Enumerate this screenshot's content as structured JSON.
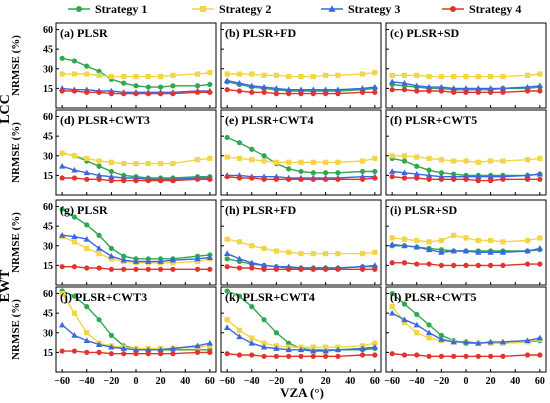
{
  "chart_data": {
    "type": "line",
    "x": [
      -60,
      -50,
      -40,
      -30,
      -20,
      -10,
      0,
      10,
      20,
      30,
      50,
      60
    ],
    "xlabel": "VZA (°)",
    "ylabel": "NRMSE (%)",
    "ylim": [
      0,
      65
    ],
    "xlim": [
      -65,
      65
    ],
    "yticks": [
      0,
      15,
      30,
      45,
      60
    ],
    "yticklabels": [
      "",
      "15",
      "30",
      "45",
      "60"
    ],
    "xticks": [
      -60,
      -40,
      -20,
      0,
      20,
      40,
      60
    ],
    "xticklabels": [
      "−60",
      "−40",
      "−20",
      "0",
      "20",
      "40",
      "60"
    ],
    "row_labels": [
      {
        "label": "LCC",
        "rows": [
          0,
          1
        ]
      },
      {
        "label": "EWT",
        "rows": [
          2,
          3
        ]
      }
    ],
    "legend": {
      "placement": "top",
      "entries": [
        {
          "name": "Strategy 1",
          "color": "#2fa84f",
          "marker": "circle"
        },
        {
          "name": "Strategy 2",
          "color": "#f2d548",
          "marker": "square"
        },
        {
          "name": "Strategy 3",
          "color": "#3b68e0",
          "marker": "triangle"
        },
        {
          "name": "Strategy 4",
          "color": "#e2332c",
          "marker": "circle"
        }
      ]
    },
    "panels": [
      {
        "title": "(a) PLSR",
        "series": [
          [
            38,
            36,
            32,
            28,
            22,
            19,
            17,
            16,
            16,
            17,
            17,
            18
          ],
          [
            26,
            26,
            26,
            25,
            24,
            24,
            24,
            24,
            24,
            25,
            26,
            27
          ],
          [
            15,
            14,
            14,
            13,
            13,
            12,
            12,
            12,
            12,
            12,
            13,
            13
          ],
          [
            13,
            13,
            12,
            12,
            11,
            11,
            11,
            11,
            11,
            11,
            12,
            12
          ]
        ]
      },
      {
        "title": "(b) PLSR+FD",
        "series": [
          [
            20,
            18,
            16,
            15,
            14,
            13,
            13,
            13,
            13,
            13,
            14,
            15
          ],
          [
            26,
            26,
            26,
            25,
            25,
            24,
            24,
            24,
            25,
            25,
            26,
            27
          ],
          [
            21,
            19,
            17,
            16,
            15,
            14,
            14,
            14,
            14,
            14,
            15,
            16
          ],
          [
            14,
            13,
            12,
            12,
            11,
            11,
            11,
            11,
            11,
            11,
            12,
            12
          ]
        ]
      },
      {
        "title": "(c) PLSR+SD",
        "series": [
          [
            18,
            17,
            16,
            15,
            15,
            14,
            14,
            14,
            14,
            15,
            15,
            16
          ],
          [
            25,
            25,
            25,
            24,
            24,
            24,
            24,
            24,
            24,
            24,
            25,
            26
          ],
          [
            20,
            19,
            17,
            16,
            16,
            15,
            15,
            15,
            15,
            15,
            16,
            17
          ],
          [
            14,
            14,
            13,
            13,
            13,
            12,
            12,
            12,
            12,
            12,
            13,
            13
          ]
        ]
      },
      {
        "title": "(d) PLSR+CWT3",
        "series": [
          [
            32,
            30,
            26,
            22,
            18,
            15,
            14,
            13,
            13,
            13,
            14,
            14
          ],
          [
            32,
            30,
            28,
            26,
            25,
            24,
            24,
            24,
            24,
            24,
            27,
            28
          ],
          [
            22,
            19,
            17,
            15,
            14,
            13,
            13,
            12,
            12,
            12,
            13,
            13
          ],
          [
            13,
            13,
            12,
            12,
            11,
            11,
            11,
            11,
            11,
            11,
            12,
            12
          ]
        ]
      },
      {
        "title": "(e) PLSR+CWT4",
        "series": [
          [
            44,
            40,
            35,
            30,
            24,
            20,
            18,
            17,
            17,
            17,
            18,
            18
          ],
          [
            29,
            28,
            27,
            26,
            25,
            25,
            25,
            25,
            25,
            25,
            26,
            28
          ],
          [
            15,
            15,
            14,
            14,
            14,
            13,
            13,
            13,
            13,
            13,
            14,
            14
          ],
          [
            14,
            13,
            13,
            12,
            12,
            12,
            12,
            12,
            12,
            12,
            12,
            13
          ]
        ]
      },
      {
        "title": "(f) PLSR+CWT5",
        "series": [
          [
            28,
            26,
            22,
            19,
            17,
            16,
            15,
            15,
            15,
            15,
            15,
            16
          ],
          [
            30,
            30,
            29,
            28,
            27,
            26,
            26,
            25,
            26,
            26,
            27,
            28
          ],
          [
            18,
            17,
            16,
            15,
            14,
            14,
            14,
            14,
            14,
            14,
            15,
            16
          ],
          [
            14,
            13,
            13,
            12,
            12,
            12,
            12,
            11,
            11,
            12,
            12,
            12
          ]
        ]
      },
      {
        "title": "(g) PLSR",
        "series": [
          [
            58,
            52,
            46,
            38,
            28,
            22,
            20,
            20,
            20,
            20,
            22,
            23
          ],
          [
            37,
            33,
            28,
            24,
            20,
            18,
            17,
            17,
            17,
            17,
            18,
            20
          ],
          [
            38,
            37,
            35,
            28,
            22,
            19,
            18,
            18,
            18,
            19,
            20,
            21
          ],
          [
            14,
            14,
            13,
            13,
            12,
            12,
            12,
            12,
            12,
            12,
            12,
            12
          ]
        ]
      },
      {
        "title": "(h) PLSR+FD",
        "series": [
          [
            20,
            18,
            16,
            15,
            14,
            13,
            13,
            13,
            13,
            13,
            14,
            14
          ],
          [
            35,
            33,
            30,
            28,
            26,
            25,
            24,
            24,
            24,
            24,
            24,
            25
          ],
          [
            24,
            20,
            17,
            15,
            14,
            14,
            13,
            13,
            13,
            13,
            14,
            15
          ],
          [
            14,
            13,
            13,
            12,
            12,
            12,
            12,
            12,
            12,
            12,
            12,
            12
          ]
        ]
      },
      {
        "title": "(i) PLSR+SD",
        "series": [
          [
            30,
            30,
            29,
            28,
            27,
            26,
            26,
            26,
            26,
            26,
            26,
            27
          ],
          [
            36,
            35,
            34,
            33,
            34,
            38,
            36,
            34,
            34,
            33,
            34,
            36
          ],
          [
            31,
            30,
            29,
            27,
            25,
            26,
            26,
            25,
            25,
            25,
            26,
            28
          ],
          [
            17,
            17,
            16,
            16,
            15,
            15,
            15,
            15,
            15,
            15,
            16,
            16
          ]
        ]
      },
      {
        "title": "(j) PLSR+CWT3",
        "series": [
          [
            62,
            58,
            50,
            40,
            28,
            20,
            18,
            17,
            17,
            17,
            17,
            17
          ],
          [
            60,
            45,
            30,
            22,
            20,
            19,
            18,
            18,
            18,
            18,
            19,
            20
          ],
          [
            36,
            28,
            24,
            21,
            19,
            18,
            17,
            17,
            17,
            18,
            20,
            22
          ],
          [
            16,
            16,
            15,
            15,
            14,
            14,
            14,
            14,
            14,
            14,
            15,
            15
          ]
        ]
      },
      {
        "title": "(k) PLSR+CWT4",
        "series": [
          [
            62,
            58,
            50,
            40,
            30,
            22,
            18,
            17,
            17,
            17,
            17,
            18
          ],
          [
            40,
            32,
            26,
            22,
            20,
            19,
            19,
            19,
            19,
            19,
            20,
            22
          ],
          [
            34,
            27,
            22,
            19,
            18,
            17,
            17,
            16,
            16,
            17,
            18,
            19
          ],
          [
            14,
            13,
            13,
            12,
            12,
            12,
            12,
            12,
            12,
            12,
            13,
            13
          ]
        ]
      },
      {
        "title": "(l) PLSR+CWT5",
        "series": [
          [
            60,
            52,
            44,
            36,
            28,
            24,
            22,
            22,
            22,
            22,
            23,
            24
          ],
          [
            50,
            38,
            30,
            26,
            24,
            23,
            23,
            22,
            22,
            22,
            23,
            25
          ],
          [
            45,
            40,
            36,
            30,
            25,
            23,
            23,
            22,
            23,
            23,
            24,
            26
          ],
          [
            14,
            13,
            13,
            12,
            12,
            12,
            12,
            12,
            12,
            12,
            13,
            13
          ]
        ]
      }
    ]
  }
}
